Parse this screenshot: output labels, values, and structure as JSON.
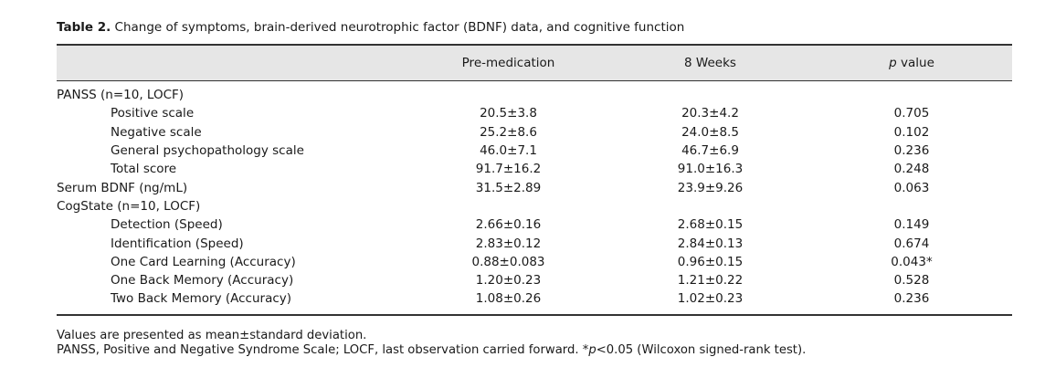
{
  "caption": {
    "label": "Table 2.",
    "text": " Change of symptoms, brain-derived neurotrophic factor (BDNF) data, and cognitive function"
  },
  "header": {
    "col_pre": "Pre-medication",
    "col_8w": "8 Weeks",
    "col_p_italic": "p",
    "col_p_rest": " value"
  },
  "rows": [
    {
      "label": "PANSS (n=10, LOCF)",
      "pre": "",
      "wk8": "",
      "p": ""
    },
    {
      "label": "Positive scale",
      "pre": "20.5±3.8",
      "wk8": "20.3±4.2",
      "p": "0.705"
    },
    {
      "label": "Negative scale",
      "pre": "25.2±8.6",
      "wk8": "24.0±8.5",
      "p": "0.102"
    },
    {
      "label": "General psychopathology scale",
      "pre": "46.0±7.1",
      "wk8": "46.7±6.9",
      "p": "0.236"
    },
    {
      "label": "Total score",
      "pre": "91.7±16.2",
      "wk8": "91.0±16.3",
      "p": "0.248"
    },
    {
      "label": "Serum BDNF (ng/mL)",
      "pre": "31.5±2.89",
      "wk8": "23.9±9.26",
      "p": "0.063"
    },
    {
      "label": "CogState (n=10, LOCF)",
      "pre": "",
      "wk8": "",
      "p": ""
    },
    {
      "label": "Detection (Speed)",
      "pre": "2.66±0.16",
      "wk8": "2.68±0.15",
      "p": "0.149"
    },
    {
      "label": "Identification (Speed)",
      "pre": "2.83±0.12",
      "wk8": "2.84±0.13",
      "p": "0.674"
    },
    {
      "label": "One Card Learning (Accuracy)",
      "pre": "0.88±0.083",
      "wk8": "0.96±0.15",
      "p": "0.043*"
    },
    {
      "label": "One Back Memory (Accuracy)",
      "pre": "1.20±0.23",
      "wk8": "1.21±0.22",
      "p": "0.528"
    },
    {
      "label": "Two Back Memory (Accuracy)",
      "pre": "1.08±0.26",
      "wk8": "1.02±0.23",
      "p": "0.236"
    }
  ],
  "notes": {
    "line1": "Values are presented as mean±standard deviation.",
    "line2_a": "PANSS, Positive and Negative Syndrome Scale; LOCF, last observation carried forward. *",
    "line2_italic": "p",
    "line2_b": "<0.05 (Wilcoxon signed-rank test)."
  }
}
